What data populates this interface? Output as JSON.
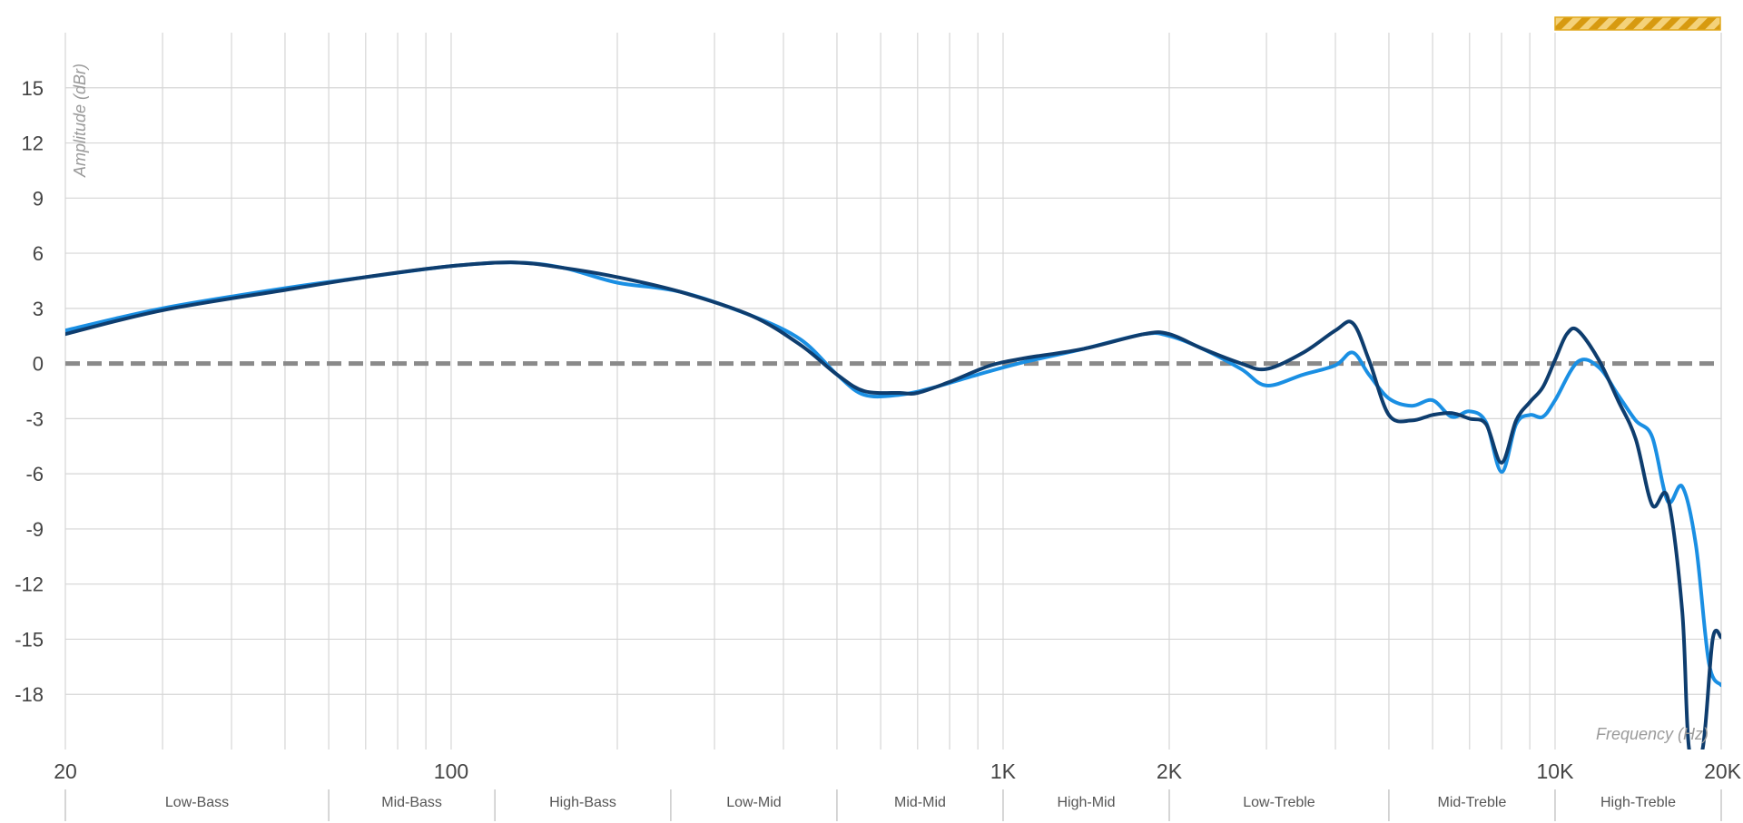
{
  "chart_data": {
    "type": "line",
    "xlabel": "Frequency (Hz)",
    "ylabel": "Amplitude (dBr)",
    "x_scale": "log",
    "xlim": [
      20,
      20000
    ],
    "ylim": [
      -21,
      18
    ],
    "grid": true,
    "y_ticks": [
      15,
      12,
      9,
      6,
      3,
      0,
      -3,
      -6,
      -9,
      -12,
      -15,
      -18
    ],
    "y_tick_labels": [
      "15",
      "12",
      "9",
      "6",
      "3",
      "0",
      "-3",
      "-6",
      "-9",
      "-12",
      "-15",
      "-18"
    ],
    "x_ticks": [
      20,
      100,
      1000,
      2000,
      10000,
      20000
    ],
    "x_tick_labels": [
      "20",
      "100",
      "1K",
      "2K",
      "10K",
      "20K"
    ],
    "reference_line": {
      "y": 0,
      "style": "dashed",
      "color": "#8a8a8a"
    },
    "bands": [
      {
        "label": "Low-Bass",
        "from": 20,
        "to": 60
      },
      {
        "label": "Mid-Bass",
        "from": 60,
        "to": 120
      },
      {
        "label": "High-Bass",
        "from": 120,
        "to": 250
      },
      {
        "label": "Low-Mid",
        "from": 250,
        "to": 500
      },
      {
        "label": "Mid-Mid",
        "from": 500,
        "to": 1000
      },
      {
        "label": "High-Mid",
        "from": 1000,
        "to": 2000
      },
      {
        "label": "Low-Treble",
        "from": 2000,
        "to": 5000
      },
      {
        "label": "Mid-Treble",
        "from": 5000,
        "to": 10000
      },
      {
        "label": "High-Treble",
        "from": 10000,
        "to": 20000
      }
    ],
    "series": [
      {
        "color": "#1a8fe3",
        "points": [
          [
            20,
            1.8
          ],
          [
            30,
            3.0
          ],
          [
            50,
            4.1
          ],
          [
            70,
            4.7
          ],
          [
            100,
            5.3
          ],
          [
            130,
            5.5
          ],
          [
            160,
            5.2
          ],
          [
            200,
            4.4
          ],
          [
            260,
            3.9
          ],
          [
            350,
            2.6
          ],
          [
            430,
            1.3
          ],
          [
            500,
            -0.6
          ],
          [
            560,
            -1.7
          ],
          [
            650,
            -1.7
          ],
          [
            750,
            -1.3
          ],
          [
            900,
            -0.6
          ],
          [
            1100,
            0.1
          ],
          [
            1400,
            0.8
          ],
          [
            1800,
            1.6
          ],
          [
            2000,
            1.5
          ],
          [
            2300,
            0.8
          ],
          [
            2700,
            -0.3
          ],
          [
            3000,
            -1.2
          ],
          [
            3500,
            -0.6
          ],
          [
            4000,
            -0.1
          ],
          [
            4300,
            0.6
          ],
          [
            4600,
            -0.6
          ],
          [
            5000,
            -1.9
          ],
          [
            5500,
            -2.3
          ],
          [
            6000,
            -2.0
          ],
          [
            6500,
            -2.9
          ],
          [
            7000,
            -2.6
          ],
          [
            7500,
            -3.2
          ],
          [
            8000,
            -5.9
          ],
          [
            8500,
            -3.3
          ],
          [
            9000,
            -2.8
          ],
          [
            9500,
            -2.9
          ],
          [
            10000,
            -2.0
          ],
          [
            11000,
            0.1
          ],
          [
            12000,
            -0.2
          ],
          [
            13000,
            -1.7
          ],
          [
            14000,
            -3.1
          ],
          [
            15000,
            -4.0
          ],
          [
            16000,
            -7.5
          ],
          [
            17000,
            -6.7
          ],
          [
            18000,
            -9.9
          ],
          [
            19000,
            -16.3
          ],
          [
            20000,
            -17.5
          ]
        ]
      },
      {
        "color": "#0e3d6e",
        "points": [
          [
            20,
            1.6
          ],
          [
            30,
            2.9
          ],
          [
            50,
            4.0
          ],
          [
            70,
            4.7
          ],
          [
            100,
            5.3
          ],
          [
            130,
            5.5
          ],
          [
            160,
            5.2
          ],
          [
            200,
            4.7
          ],
          [
            260,
            3.9
          ],
          [
            350,
            2.6
          ],
          [
            430,
            1.0
          ],
          [
            500,
            -0.6
          ],
          [
            560,
            -1.5
          ],
          [
            650,
            -1.6
          ],
          [
            700,
            -1.6
          ],
          [
            800,
            -1.0
          ],
          [
            950,
            -0.1
          ],
          [
            1100,
            0.3
          ],
          [
            1400,
            0.8
          ],
          [
            1800,
            1.6
          ],
          [
            2000,
            1.6
          ],
          [
            2300,
            0.8
          ],
          [
            2700,
            0.0
          ],
          [
            3000,
            -0.3
          ],
          [
            3500,
            0.6
          ],
          [
            4000,
            1.8
          ],
          [
            4300,
            2.2
          ],
          [
            4600,
            0.2
          ],
          [
            5000,
            -2.8
          ],
          [
            5500,
            -3.1
          ],
          [
            6000,
            -2.8
          ],
          [
            6500,
            -2.7
          ],
          [
            7000,
            -3.0
          ],
          [
            7500,
            -3.3
          ],
          [
            8000,
            -5.4
          ],
          [
            8500,
            -3.1
          ],
          [
            9000,
            -2.1
          ],
          [
            9500,
            -1.3
          ],
          [
            10000,
            0.2
          ],
          [
            10500,
            1.6
          ],
          [
            11000,
            1.8
          ],
          [
            12000,
            0.2
          ],
          [
            13000,
            -2.0
          ],
          [
            14000,
            -4.1
          ],
          [
            15000,
            -7.7
          ],
          [
            16000,
            -7.3
          ],
          [
            17000,
            -13.5
          ],
          [
            17500,
            -21.0
          ],
          [
            18500,
            -21.0
          ],
          [
            19300,
            -15.0
          ],
          [
            20000,
            -14.9
          ]
        ]
      }
    ]
  },
  "status_indicator": {
    "color": "#e0a81c"
  }
}
